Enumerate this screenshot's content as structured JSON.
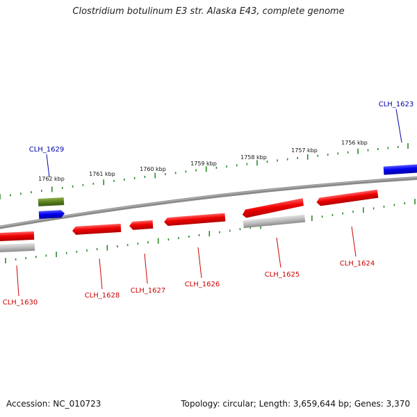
{
  "title": "Clostridium botulinum E3 str. Alaska E43, complete genome",
  "footer": {
    "accession": "Accession: NC_010723",
    "summary": "Topology: circular; Length: 3,659,644 bp; Genes: 3,370"
  },
  "ticks": [
    "1756 kbp",
    "1757 kbp",
    "1758 kbp",
    "1759 kbp",
    "1760 kbp",
    "1761 kbp",
    "1762 kbp"
  ],
  "genes": [
    {
      "name": "CLH_1623",
      "strand": "forward",
      "color": "#0000cc"
    },
    {
      "name": "CLH_1629",
      "strand": "forward",
      "color": "#0000cc"
    },
    {
      "name": "CLH_1624",
      "strand": "reverse",
      "color": "#cc0000"
    },
    {
      "name": "CLH_1625",
      "strand": "reverse",
      "color": "#cc0000"
    },
    {
      "name": "CLH_1626",
      "strand": "reverse",
      "color": "#cc0000"
    },
    {
      "name": "CLH_1627",
      "strand": "reverse",
      "color": "#cc0000"
    },
    {
      "name": "CLH_1628",
      "strand": "reverse",
      "color": "#cc0000"
    },
    {
      "name": "CLH_1630",
      "strand": "reverse",
      "color": "#cc0000"
    }
  ],
  "colors": {
    "forward_cds": "#0000ee",
    "reverse_cds": "#ee0000",
    "forward_gene": "#5a7f1e",
    "reverse_gene": "#b8b8b8",
    "backbone": "#7a7a7a",
    "ticks": "#2a8a2a",
    "label_forward": "#0000aa",
    "label_reverse": "#cc0000"
  }
}
